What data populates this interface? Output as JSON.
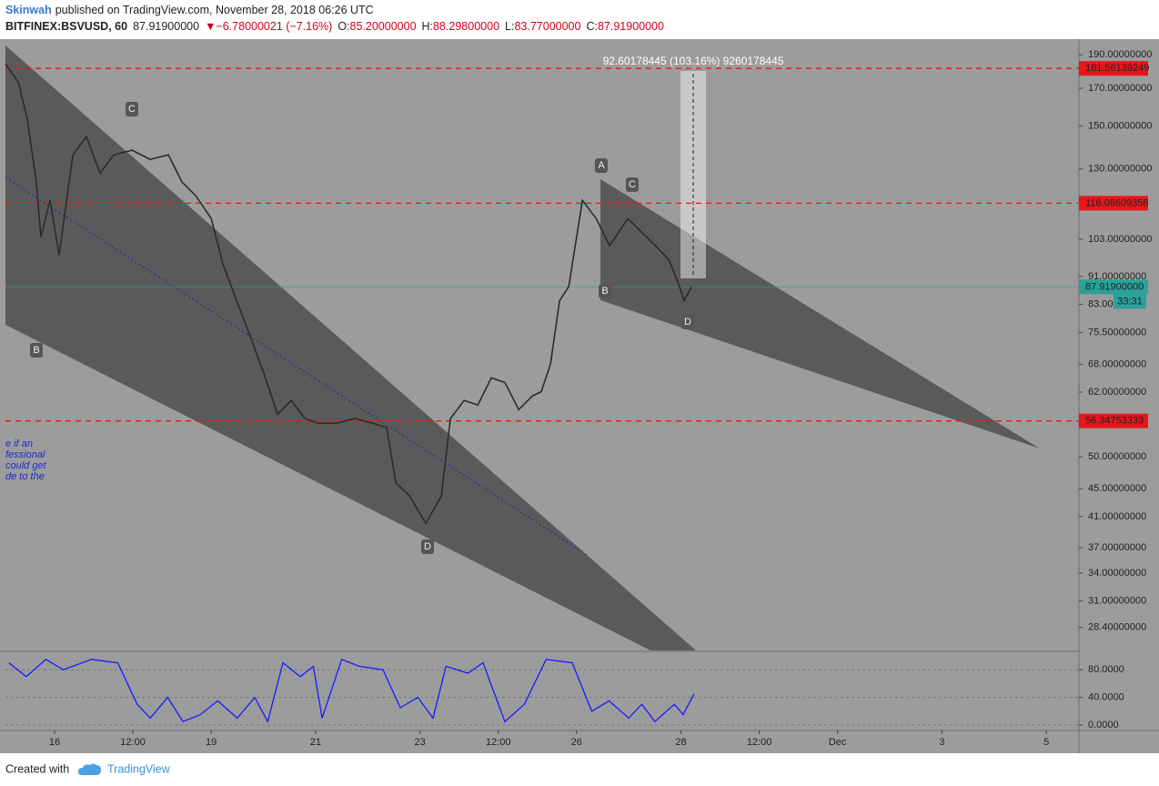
{
  "header": {
    "author": "Skinwah",
    "published": "published on TradingView.com, November 28, 2018 06:26 UTC",
    "symbol": "BITFINEX:BSVUSD, 60",
    "last": "87.91900000",
    "change": "▼−6.78000021 (−7.16%)",
    "ohlc": [
      {
        "label": "O:",
        "value": "85.20000000"
      },
      {
        "label": "H:",
        "value": "88.29800000"
      },
      {
        "label": "L:",
        "value": "83.77000000"
      },
      {
        "label": "C:",
        "value": "87.91900000"
      }
    ]
  },
  "chart_data": [
    {
      "type": "line",
      "log_scale": true,
      "color": "#2b2b2b",
      "x": [
        -22.6,
        -16.7,
        -12.6,
        -8.4,
        -6.3,
        -2.1,
        2.1,
        8.4,
        14.6,
        20.9,
        27.2,
        35.6,
        43.9,
        52.3,
        58.6,
        64.9,
        72.0,
        77.4,
        83.7,
        90.0,
        96.2,
        102.5,
        108.8,
        115.1,
        121.3,
        129.7,
        138.1,
        146.4,
        152.7,
        156.9,
        163.2,
        170.7,
        177.8,
        182.0,
        188.3,
        194.6,
        200.8,
        207.1,
        213.4,
        219.7,
        223.8,
        228.0,
        232.2,
        236.4,
        242.7,
        249.0,
        255.2,
        263.6,
        269.9,
        276.2,
        282.4,
        286.6,
        289.5,
        292.9
      ],
      "values": [
        184.3,
        173.5,
        153.8,
        124.5,
        103.8,
        117.2,
        97.7,
        136.3,
        144.8,
        128.3,
        136.3,
        138.4,
        134.3,
        136.3,
        124.5,
        119.0,
        110.3,
        94.8,
        84.0,
        74.5,
        66.0,
        57.6,
        60.3,
        56.8,
        55.9,
        55.9,
        56.8,
        55.9,
        55.1,
        45.9,
        43.9,
        40.1,
        43.9,
        56.8,
        60.3,
        59.4,
        65.0,
        64.0,
        58.5,
        61.2,
        62.1,
        68.0,
        84.0,
        88.0,
        117.2,
        110.3,
        100.8,
        110.3,
        105.4,
        100.8,
        96.3,
        89.3,
        84.0,
        87.92
      ],
      "xlim": [
        -22.6,
        471
      ],
      "xticks": [
        {
          "value": 0,
          "label": "16"
        },
        {
          "value": 36,
          "label": "12:00"
        },
        {
          "value": 72,
          "label": "19"
        },
        {
          "value": 120,
          "label": "21"
        },
        {
          "value": 168,
          "label": "23"
        },
        {
          "value": 204,
          "label": "12:00"
        },
        {
          "value": 240,
          "label": "26"
        },
        {
          "value": 288,
          "label": "28"
        },
        {
          "value": 324,
          "label": "12:00"
        },
        {
          "value": 360,
          "label": "Dec"
        },
        {
          "value": 408,
          "label": "3"
        },
        {
          "value": 456,
          "label": "5"
        }
      ],
      "ylim": [
        26.3,
        199.5
      ],
      "yticks": [
        {
          "value": 190,
          "label": "190.00000000"
        },
        {
          "value": 170,
          "label": "170.00000000"
        },
        {
          "value": 150,
          "label": "150.00000000"
        },
        {
          "value": 130,
          "label": "130.00000000"
        },
        {
          "value": 103,
          "label": "103.00000000"
        },
        {
          "value": 91,
          "label": "91.00000000"
        },
        {
          "value": 83,
          "label": "83.00000000"
        },
        {
          "value": 75.5,
          "label": "75.50000000"
        },
        {
          "value": 68,
          "label": "68.00000000"
        },
        {
          "value": 62,
          "label": "62.00000000"
        },
        {
          "value": 50,
          "label": "50.00000000"
        },
        {
          "value": 45,
          "label": "45.00000000"
        },
        {
          "value": 41,
          "label": "41.00000000"
        },
        {
          "value": 37,
          "label": "37.00000000"
        },
        {
          "value": 34,
          "label": "34.00000000"
        },
        {
          "value": 31,
          "label": "31.00000000"
        },
        {
          "value": 28.4,
          "label": "28.40000000"
        }
      ],
      "price_lines": [
        181.56139249,
        116.06609356,
        56.34753333
      ],
      "price_line_color": "#e8161b",
      "last_price": {
        "value": 87.919,
        "label": "87.91900000"
      },
      "last_price_color": "#2aa19a",
      "countdown": "33:31"
    },
    {
      "type": "line",
      "color": "#1a1aff",
      "x": [
        -21,
        -13,
        -4,
        4,
        17,
        29,
        38,
        44,
        52,
        59,
        67,
        75,
        84,
        92,
        98,
        105,
        113,
        119,
        123,
        132,
        140,
        151,
        159,
        167,
        174,
        180,
        190,
        197,
        207,
        216,
        226,
        238,
        247,
        255,
        264,
        270,
        276,
        285,
        289,
        294
      ],
      "values": [
        90,
        70,
        95,
        80,
        95,
        90,
        30,
        10,
        40,
        5,
        15,
        35,
        10,
        40,
        5,
        90,
        70,
        85,
        10,
        95,
        85,
        80,
        25,
        40,
        10,
        85,
        75,
        90,
        5,
        30,
        95,
        90,
        20,
        35,
        10,
        30,
        5,
        30,
        15,
        45
      ],
      "xlim": [
        -22.6,
        471
      ],
      "ylim": [
        -4,
        104
      ],
      "yticks": [
        {
          "value": 80,
          "label": "80.0000"
        },
        {
          "value": 40,
          "label": "40.0000"
        },
        {
          "value": 0,
          "label": "0.0000"
        }
      ]
    }
  ],
  "annotations": {
    "measure": "92.60178445 (103.16%) 9260178445",
    "pattern_points": [
      "B",
      "C",
      "D",
      "A",
      "B",
      "C",
      "D"
    ],
    "note_fragments": [
      "e if an",
      "fessional",
      " could get",
      "de to the"
    ]
  },
  "footer": {
    "created": "Created with",
    "brand": "TradingView"
  }
}
